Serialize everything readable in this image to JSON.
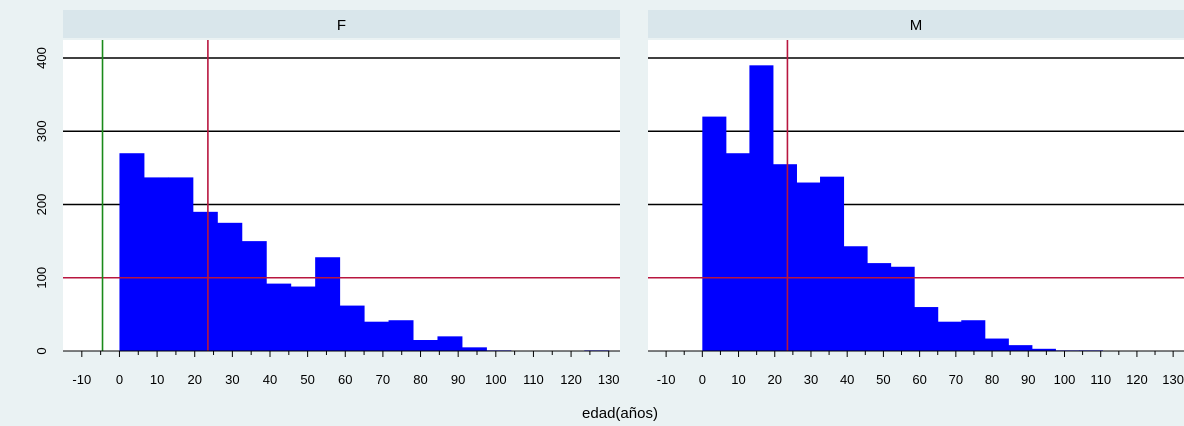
{
  "chart_data": {
    "type": "bar",
    "xlabel": "edad(años)",
    "ylabel": "",
    "ylim": [
      0,
      420
    ],
    "xlim": [
      -15,
      133
    ],
    "x_ticks": [
      -10,
      0,
      10,
      20,
      30,
      40,
      50,
      60,
      70,
      80,
      90,
      100,
      110,
      120,
      130
    ],
    "y_ticks": [
      0,
      100,
      200,
      300,
      400
    ],
    "bin_edges": [
      0,
      6.5,
      13,
      19.5,
      26,
      32.5,
      39,
      45.5,
      52,
      58.5,
      65,
      71.5,
      78,
      84.5,
      91,
      97.5,
      104,
      110.5,
      117,
      123.5,
      130
    ],
    "reference_lines": {
      "horizontal": 100,
      "vertical": 23.5,
      "left_panel_vertical": -4.5
    },
    "grid": true,
    "bar_color": "#0000ff",
    "colors": {
      "background": "#eaf2f3",
      "strip": "#d9e6eb",
      "reference": "#b8163f",
      "left_vertical": "#1a8a1a",
      "gridline": "#000000"
    },
    "panels": [
      {
        "label": "F",
        "values": [
          270,
          237,
          237,
          190,
          175,
          150,
          92,
          88,
          128,
          62,
          40,
          42,
          15,
          20,
          5,
          1,
          0,
          0,
          0,
          1
        ]
      },
      {
        "label": "M",
        "values": [
          320,
          270,
          390,
          255,
          230,
          238,
          143,
          120,
          115,
          60,
          40,
          42,
          17,
          8,
          3,
          1,
          1,
          0,
          0,
          0
        ]
      }
    ]
  }
}
